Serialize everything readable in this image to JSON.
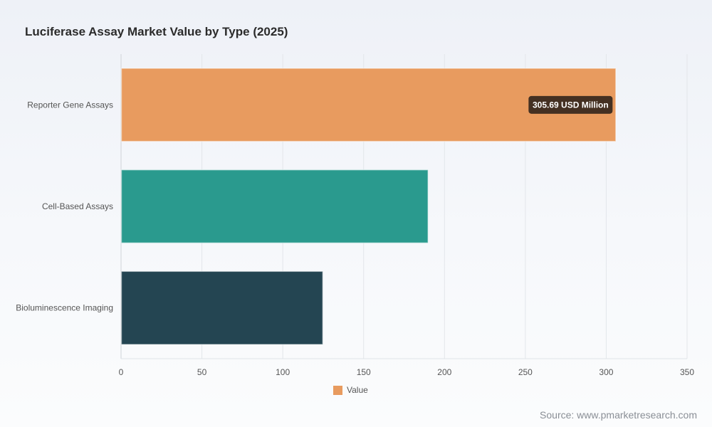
{
  "chart_data": {
    "type": "bar",
    "orientation": "horizontal",
    "title": "Luciferase Assay Market Value by Type (2025)",
    "categories": [
      "Reporter Gene Assays",
      "Cell-Based Assays",
      "Bioluminescence Imaging"
    ],
    "series": [
      {
        "name": "Value",
        "values": [
          305.69,
          189.6,
          124.5
        ]
      }
    ],
    "bar_colors": [
      "#e89b5f",
      "#2a9a8e",
      "#244552"
    ],
    "xlim": [
      0,
      350
    ],
    "x_ticks": [
      "0",
      "50",
      "100",
      "150",
      "200",
      "250",
      "300",
      "350"
    ],
    "grid": true,
    "legend_position": "bottom-center",
    "tooltip": {
      "category": "Reporter Gene Assays",
      "text": "305.69 USD Million"
    }
  },
  "legend": {
    "label": "Value",
    "color": "#e89b5f"
  },
  "source": "Source: www.pmarketresearch.com"
}
